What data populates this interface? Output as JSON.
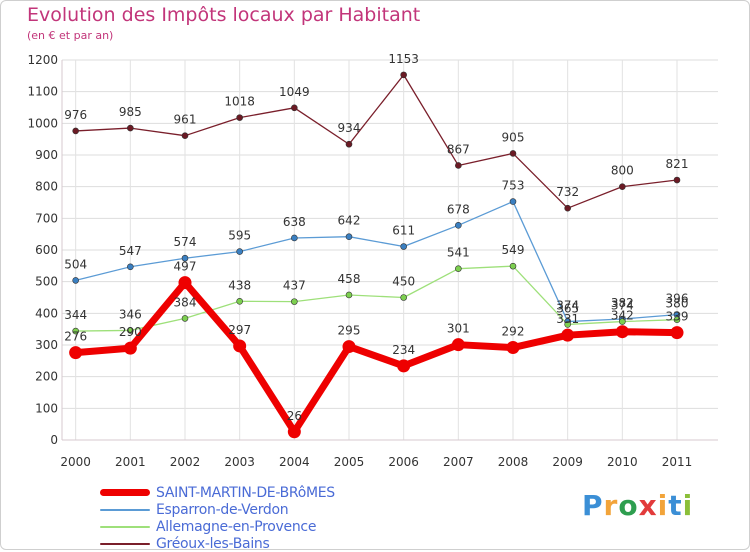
{
  "header": {
    "title": "Evolution des Impôts locaux par Habitant",
    "subtitle": "(en € et par an)"
  },
  "logo": {
    "letters": [
      "P",
      "r",
      "o",
      "x",
      "i",
      "t",
      "i"
    ],
    "colors": [
      "#3b8fd6",
      "#f2a43a",
      "#2e9e4f",
      "#e23b3b",
      "#f2a43a",
      "#3b8fd6",
      "#8bbf3a"
    ]
  },
  "chart_data": {
    "type": "line",
    "title": "Evolution des Impôts locaux par Habitant",
    "subtitle": "(en € et par an)",
    "xlabel": "",
    "ylabel": "",
    "ylim": [
      0,
      1200
    ],
    "yticks": [
      "0",
      "100",
      "200",
      "300",
      "400",
      "500",
      "600",
      "700",
      "800",
      "900",
      "1000",
      "1100",
      "1200"
    ],
    "categories": [
      "2000",
      "2001",
      "2002",
      "2003",
      "2004",
      "2005",
      "2006",
      "2007",
      "2008",
      "2009",
      "2010",
      "2011"
    ],
    "grid": true,
    "legend_position": "bottom-left",
    "series": [
      {
        "name": "Gréoux-les-Bains",
        "color": "#7a1f2b",
        "point_color": "#6b1a24",
        "width": 1.3,
        "values": [
          976,
          985,
          961,
          1018,
          1049,
          934,
          1153,
          867,
          905,
          732,
          800,
          821
        ],
        "labels": [
          "976",
          "985",
          "961",
          "1018",
          "1049",
          "934",
          "1153",
          "867",
          "905",
          "732",
          "800",
          "821"
        ]
      },
      {
        "name": "Esparron-de-Verdon",
        "color": "#5b9bd5",
        "point_color": "#3a7fc1",
        "width": 1.3,
        "values": [
          504,
          547,
          574,
          595,
          638,
          642,
          611,
          678,
          753,
          374,
          382,
          396
        ],
        "labels": [
          "504",
          "547",
          "574",
          "595",
          "638",
          "642",
          "611",
          "678",
          "753",
          "374",
          "382",
          "396"
        ]
      },
      {
        "name": "Allemagne-en-Provence",
        "color": "#9ee07a",
        "point_color": "#7ccf4f",
        "width": 1.3,
        "values": [
          344,
          346,
          384,
          438,
          437,
          458,
          450,
          541,
          549,
          365,
          374,
          380
        ],
        "labels": [
          "344",
          "346",
          "384",
          "438",
          "437",
          "458",
          "450",
          "541",
          "549",
          "365",
          "374",
          "380"
        ]
      },
      {
        "name": "SAINT-MARTIN-DE-BRôMES",
        "color": "#ee0000",
        "point_color": "#ee0000",
        "width": 7,
        "values": [
          276,
          290,
          497,
          297,
          26,
          295,
          234,
          301,
          292,
          331,
          342,
          339
        ],
        "labels": [
          "276",
          "290",
          "497",
          "297",
          "26",
          "295",
          "234",
          "301",
          "292",
          "331",
          "342",
          "339"
        ]
      }
    ]
  },
  "legend": [
    {
      "label": "SAINT-MARTIN-DE-BRôMES",
      "color": "#ee0000"
    },
    {
      "label": "Esparron-de-Verdon",
      "color": "#5b9bd5"
    },
    {
      "label": "Allemagne-en-Provence",
      "color": "#9ee07a"
    },
    {
      "label": "Gréoux-les-Bains",
      "color": "#7a1f2b"
    }
  ]
}
